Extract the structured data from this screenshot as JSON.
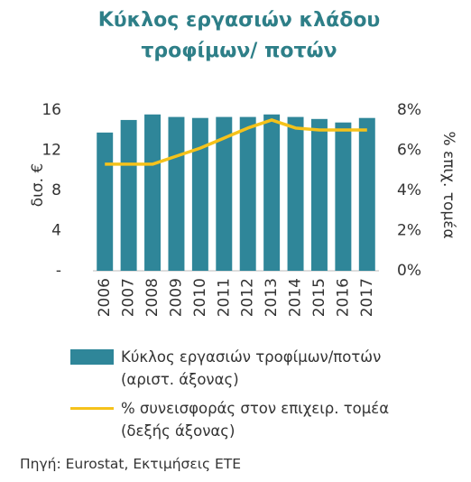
{
  "chart_data": {
    "type": "bar-line",
    "title": "Κύκλος εργασιών κλάδου τροφίμων/ ποτών",
    "y_label": "δισ. €",
    "y2_label": "% επιχ. τομέα",
    "categories": [
      "2006",
      "2007",
      "2008",
      "2009",
      "2010",
      "2011",
      "2012",
      "2013",
      "2014",
      "2015",
      "2016",
      "2017"
    ],
    "series": [
      {
        "name": "Κύκλος εργασιών τροφίμων/ποτών (αριστ. άξονας)",
        "type": "bar",
        "color": "#2f8699",
        "values": [
          13.75,
          15.0,
          15.55,
          15.3,
          15.2,
          15.3,
          15.3,
          15.55,
          15.3,
          15.1,
          14.75,
          15.2
        ]
      },
      {
        "name": "% συνεισφοράς στον επιχειρ. τομέα (δεξής άξονας)",
        "type": "line",
        "color": "#f5c21b",
        "axis": "y2",
        "values": [
          5.3,
          5.3,
          5.3,
          5.7,
          6.1,
          6.6,
          7.1,
          7.5,
          7.1,
          7.0,
          7.0,
          7.0
        ]
      }
    ],
    "ylim": [
      0,
      18
    ],
    "yticks": [
      {
        "value": 0,
        "label": "-"
      },
      4,
      8,
      12,
      16
    ],
    "y2lim": [
      0,
      9
    ],
    "y2ticks": [
      {
        "value": 0,
        "label": "0%"
      },
      {
        "value": 2,
        "label": "2%"
      },
      {
        "value": 4,
        "label": "4%"
      },
      {
        "value": 6,
        "label": "6%"
      },
      {
        "value": 8,
        "label": "8%"
      }
    ],
    "source": "Πηγή: Eurostat, Εκτιμήσεις ΕΤΕ"
  }
}
